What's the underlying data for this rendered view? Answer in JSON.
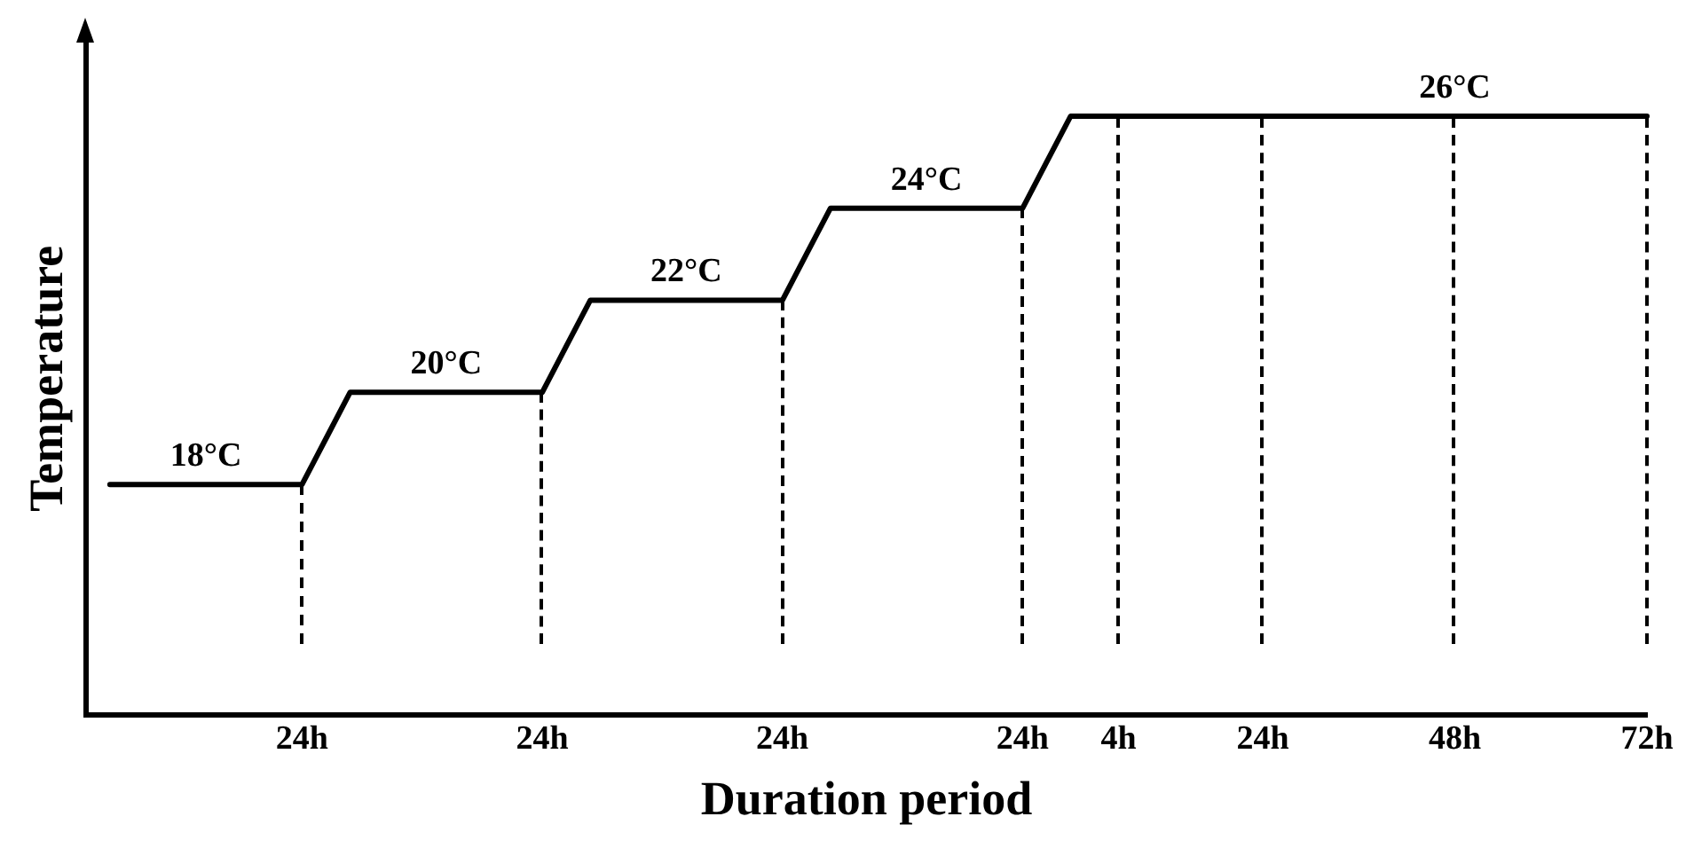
{
  "chart_data": {
    "type": "line",
    "xlabel": "Duration period",
    "ylabel": "Temperature",
    "categories": [
      null,
      null,
      null,
      null,
      null,
      null,
      null,
      null,
      null,
      "24h",
      null,
      null,
      null,
      null,
      null,
      null,
      null,
      null,
      null,
      "24h",
      null,
      null,
      null,
      null,
      null,
      null,
      null,
      null,
      null,
      "24h",
      null,
      null,
      null,
      null,
      null,
      null,
      null,
      null,
      null,
      "24h",
      null,
      null,
      null,
      "4h",
      null,
      null,
      null,
      null,
      null,
      "24h",
      null,
      null,
      null,
      null,
      null,
      null,
      null,
      "48h",
      null,
      null,
      null,
      null,
      null,
      null,
      null,
      "72h"
    ],
    "series": [
      {
        "color": "#000000",
        "values": [
          null,
          18,
          18,
          18,
          18,
          18,
          18,
          18,
          18,
          18,
          19,
          20,
          20,
          20,
          20,
          20,
          20,
          20,
          20,
          20,
          21,
          22,
          22,
          22,
          22,
          22,
          22,
          22,
          22,
          22,
          23,
          24,
          24,
          24,
          24,
          24,
          24,
          24,
          24,
          24,
          25,
          26,
          26,
          26,
          26,
          26,
          26,
          26,
          26,
          26,
          26,
          26,
          26,
          26,
          26,
          26,
          26,
          26,
          26,
          26,
          26,
          26,
          26,
          26,
          26,
          26
        ],
        "value_labels": [
          null,
          null,
          null,
          null,
          null,
          "18°C",
          null,
          null,
          null,
          null,
          null,
          null,
          null,
          null,
          null,
          "20°C",
          null,
          null,
          null,
          null,
          null,
          null,
          null,
          null,
          null,
          "22°C",
          null,
          null,
          null,
          null,
          null,
          null,
          null,
          null,
          null,
          "24°C",
          null,
          null,
          null,
          null,
          null,
          null,
          null,
          null,
          null,
          null,
          null,
          null,
          null,
          null,
          null,
          null,
          null,
          null,
          null,
          null,
          null,
          "26°C",
          null,
          null,
          null,
          null,
          null,
          null,
          null,
          null
        ]
      }
    ],
    "ylim": [
      13,
      27.6
    ],
    "tick_labels": "x",
    "grid": "x",
    "legend": false,
    "marker": "none",
    "line_style": "solid"
  }
}
